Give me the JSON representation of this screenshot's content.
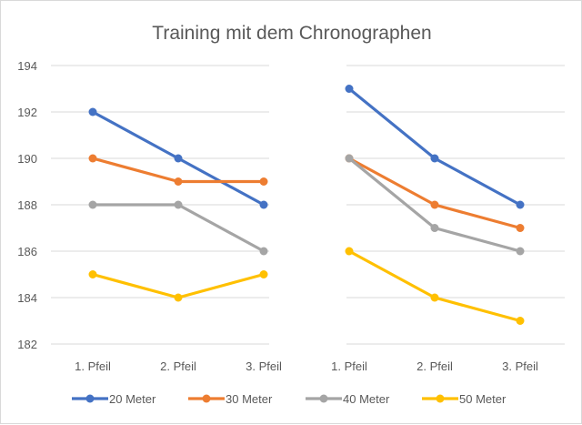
{
  "chart_data": {
    "type": "line",
    "title": "Training mit dem Chronographen",
    "categories": [
      "1. Pfeil",
      "2. Pfeil",
      "3. Pfeil",
      "1. Pfeil",
      "2. Pfeil",
      "3. Pfeil"
    ],
    "groups": [
      [
        0,
        1,
        2
      ],
      [
        3,
        4,
        5
      ]
    ],
    "series": [
      {
        "name": "20 Meter",
        "color": "#4472C4",
        "values": [
          192,
          190,
          188,
          193,
          190,
          188
        ]
      },
      {
        "name": "30 Meter",
        "color": "#ED7D31",
        "values": [
          190,
          189,
          189,
          190,
          188,
          187
        ]
      },
      {
        "name": "40 Meter",
        "color": "#A5A5A5",
        "values": [
          188,
          188,
          186,
          190,
          187,
          186
        ]
      },
      {
        "name": "50 Meter",
        "color": "#FFC000",
        "values": [
          185,
          184,
          185,
          186,
          184,
          183
        ]
      }
    ],
    "xlabel": "",
    "ylabel": "",
    "ylim": [
      182,
      194
    ],
    "yticks": [
      182,
      184,
      186,
      188,
      190,
      192,
      194
    ],
    "grid": true,
    "legend": "bottom"
  }
}
